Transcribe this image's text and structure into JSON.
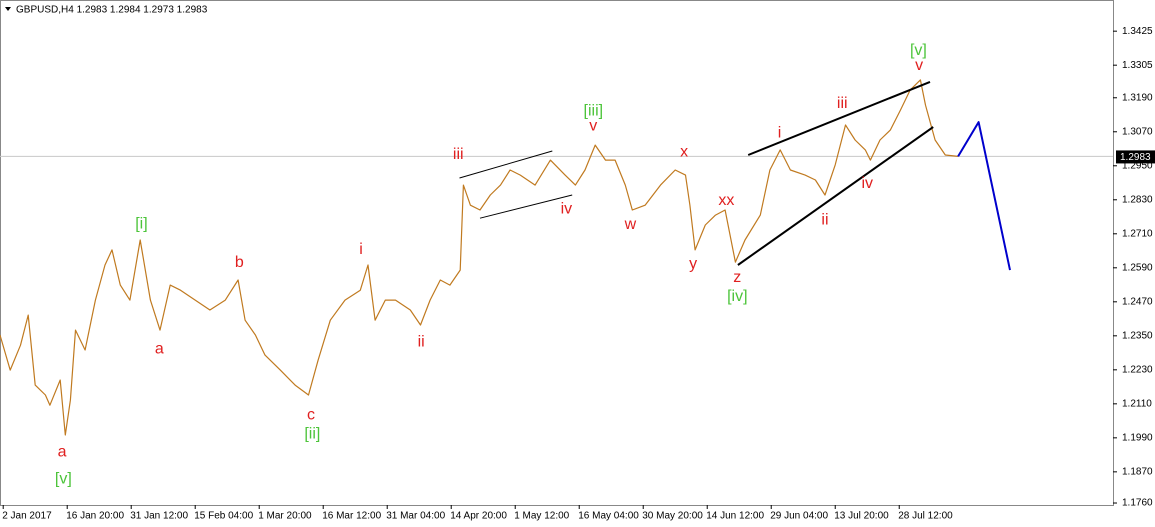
{
  "chart_data": {
    "type": "line",
    "title": "GBPUSD,H4  1.2983 1.2984 1.2973 1.2983",
    "xlim": [
      -0.05,
      17.34
    ],
    "ylim": [
      1.1753,
      1.3535
    ],
    "xticks": [
      {
        "value": 0,
        "label": "2 Jan 2017"
      },
      {
        "value": 1,
        "label": "16 Jan 20:00"
      },
      {
        "value": 2,
        "label": "31 Jan 12:00"
      },
      {
        "value": 3,
        "label": "15 Feb 04:00"
      },
      {
        "value": 4,
        "label": "1 Mar 20:00"
      },
      {
        "value": 5,
        "label": "16 Mar 12:00"
      },
      {
        "value": 6,
        "label": "31 Mar 04:00"
      },
      {
        "value": 7,
        "label": "14 Apr 20:00"
      },
      {
        "value": 8,
        "label": "1 May 12:00"
      },
      {
        "value": 9,
        "label": "16 May 04:00"
      },
      {
        "value": 10,
        "label": "30 May 20:00"
      },
      {
        "value": 11,
        "label": "14 Jun 12:00"
      },
      {
        "value": 12,
        "label": "29 Jun 04:00"
      },
      {
        "value": 13,
        "label": "13 Jul 20:00"
      },
      {
        "value": 14,
        "label": "28 Jul 12:00"
      }
    ],
    "yticks": [
      1.3425,
      1.3305,
      {
        "value": 1.319,
        "label": "1.3190"
      },
      {
        "value": 1.307,
        "label": "1.3070"
      },
      {
        "value": 1.295,
        "label": "1.2950"
      },
      {
        "value": 1.283,
        "label": "1.2830"
      },
      {
        "value": 1.271,
        "label": "1.2710"
      },
      {
        "value": 1.259,
        "label": "1.2590"
      },
      {
        "value": 1.247,
        "label": "1.2470"
      },
      {
        "value": 1.235,
        "label": "1.2350"
      },
      {
        "value": 1.223,
        "label": "1.2230"
      },
      {
        "value": 1.211,
        "label": "1.2110"
      },
      {
        "value": 1.199,
        "label": "1.1990"
      },
      {
        "value": 1.187,
        "label": "1.1870"
      },
      {
        "value": 1.176,
        "label": "1.1760"
      }
    ],
    "bid": 1.2983,
    "lines": [
      {
        "color": "#c07a20",
        "x": [
          -0.05,
          0.11,
          0.27,
          0.39,
          0.5,
          0.66,
          0.73,
          0.89,
          0.97,
          1.05,
          1.13,
          1.28,
          1.44,
          1.59,
          1.7,
          1.83,
          1.98,
          2.14,
          2.3,
          2.45,
          2.61,
          2.77,
          3.0,
          3.23,
          3.47,
          3.67,
          3.78,
          3.94,
          4.09,
          4.33,
          4.56,
          4.77,
          4.92,
          5.11,
          5.34,
          5.58,
          5.7,
          5.81,
          5.97,
          6.13,
          6.36,
          6.52,
          6.67,
          6.83,
          6.98,
          7.14,
          7.19,
          7.3,
          7.45,
          7.61,
          7.77,
          7.92,
          8.08,
          8.31,
          8.55,
          8.78,
          8.94,
          9.09,
          9.25,
          9.41,
          9.56,
          9.72,
          9.83,
          10.03,
          10.27,
          10.5,
          10.66,
          10.73,
          10.81,
          10.97,
          11.13,
          11.28,
          11.44,
          11.59,
          11.83,
          11.98,
          12.14,
          12.3,
          12.53,
          12.69,
          12.84,
          13.0,
          13.16,
          13.31,
          13.47,
          13.55,
          13.7,
          13.86,
          14.02,
          14.17,
          14.33,
          14.41,
          14.56,
          14.72,
          14.92
        ],
        "values": [
          1.2353,
          1.2229,
          1.2317,
          1.2423,
          1.2176,
          1.2141,
          1.2105,
          1.2194,
          1.2,
          1.2123,
          1.237,
          1.23,
          1.2476,
          1.26,
          1.2653,
          1.2529,
          1.2476,
          1.2688,
          1.2476,
          1.237,
          1.2529,
          1.2511,
          1.2476,
          1.2441,
          1.2476,
          1.2547,
          1.2405,
          1.2353,
          1.2282,
          1.2229,
          1.2176,
          1.2141,
          1.2264,
          1.2405,
          1.2476,
          1.2511,
          1.26,
          1.2405,
          1.2476,
          1.2476,
          1.2441,
          1.2388,
          1.2476,
          1.2547,
          1.2529,
          1.2582,
          1.2882,
          1.2811,
          1.2794,
          1.2847,
          1.2882,
          1.2935,
          1.2917,
          1.2882,
          1.297,
          1.2917,
          1.2882,
          1.2935,
          1.3023,
          1.297,
          1.297,
          1.2882,
          1.2794,
          1.2811,
          1.2882,
          1.2935,
          1.2917,
          1.2811,
          1.2653,
          1.2741,
          1.2776,
          1.2794,
          1.261,
          1.2688,
          1.2776,
          1.2935,
          1.3006,
          1.2935,
          1.2917,
          1.29,
          1.2847,
          1.2953,
          1.3094,
          1.3041,
          1.3006,
          1.297,
          1.3041,
          1.3076,
          1.3147,
          1.3217,
          1.3253,
          1.3164,
          1.3041,
          1.2988,
          1.2983
        ]
      },
      {
        "color": "#0000cc",
        "x": [
          14.92,
          15.24,
          15.73
        ],
        "values": [
          1.2983,
          1.3104,
          1.2582
        ]
      },
      {
        "color": "#000000",
        "x": [
          7.13,
          8.58
        ],
        "values": [
          1.2907,
          1.3002
        ]
      },
      {
        "color": "#000000",
        "x": [
          7.45,
          8.89
        ],
        "values": [
          1.2765,
          1.2847
        ]
      },
      {
        "color": "#000000",
        "x": [
          11.64,
          14.48
        ],
        "values": [
          1.2988,
          1.3246
        ]
      },
      {
        "color": "#000000",
        "x": [
          11.48,
          14.53
        ],
        "values": [
          1.26,
          1.3087
        ]
      }
    ],
    "annotations": [
      {
        "text": "[v]",
        "x": 0.94,
        "y": 1.1844,
        "color": "#4cc43a"
      },
      {
        "text": "a",
        "x": 0.92,
        "y": 1.1939,
        "color": "#e02020"
      },
      {
        "text": "a",
        "x": 2.44,
        "y": 1.2303,
        "color": "#e02020"
      },
      {
        "text": "[i]",
        "x": 2.16,
        "y": 1.2744,
        "color": "#4cc43a"
      },
      {
        "text": "b",
        "x": 3.69,
        "y": 1.2607,
        "color": "#e02020"
      },
      {
        "text": "c",
        "x": 4.81,
        "y": 1.207,
        "color": "#e02020"
      },
      {
        "text": "[ii]",
        "x": 4.83,
        "y": 1.2003,
        "color": "#4cc43a"
      },
      {
        "text": "i",
        "x": 5.59,
        "y": 1.2653,
        "color": "#e02020"
      },
      {
        "text": "ii",
        "x": 6.53,
        "y": 1.2328,
        "color": "#e02020"
      },
      {
        "text": "iii",
        "x": 7.11,
        "y": 1.2988,
        "color": "#e02020"
      },
      {
        "text": "iv",
        "x": 8.8,
        "y": 1.2797,
        "color": "#e02020"
      },
      {
        "text": "[iii]",
        "x": 9.22,
        "y": 1.3143,
        "color": "#4cc43a"
      },
      {
        "text": "v",
        "x": 9.22,
        "y": 1.309,
        "color": "#e02020"
      },
      {
        "text": "w",
        "x": 9.8,
        "y": 1.2741,
        "color": "#e02020"
      },
      {
        "text": "x",
        "x": 10.64,
        "y": 1.2998,
        "color": "#e02020"
      },
      {
        "text": "xx",
        "x": 11.3,
        "y": 1.2826,
        "color": "#e02020"
      },
      {
        "text": "y",
        "x": 10.78,
        "y": 1.2603,
        "color": "#e02020"
      },
      {
        "text": "z",
        "x": 11.47,
        "y": 1.2554,
        "color": "#e02020"
      },
      {
        "text": "[iv]",
        "x": 11.47,
        "y": 1.2487,
        "color": "#4cc43a"
      },
      {
        "text": "i",
        "x": 12.13,
        "y": 1.3065,
        "color": "#e02020"
      },
      {
        "text": "ii",
        "x": 12.84,
        "y": 1.2758,
        "color": "#e02020"
      },
      {
        "text": "iii",
        "x": 13.11,
        "y": 1.3168,
        "color": "#e02020"
      },
      {
        "text": "iv",
        "x": 13.5,
        "y": 1.2886,
        "color": "#e02020"
      },
      {
        "text": "[v]",
        "x": 14.3,
        "y": 1.3355,
        "color": "#4cc43a"
      },
      {
        "text": "v",
        "x": 14.31,
        "y": 1.3302,
        "color": "#e02020"
      }
    ]
  }
}
